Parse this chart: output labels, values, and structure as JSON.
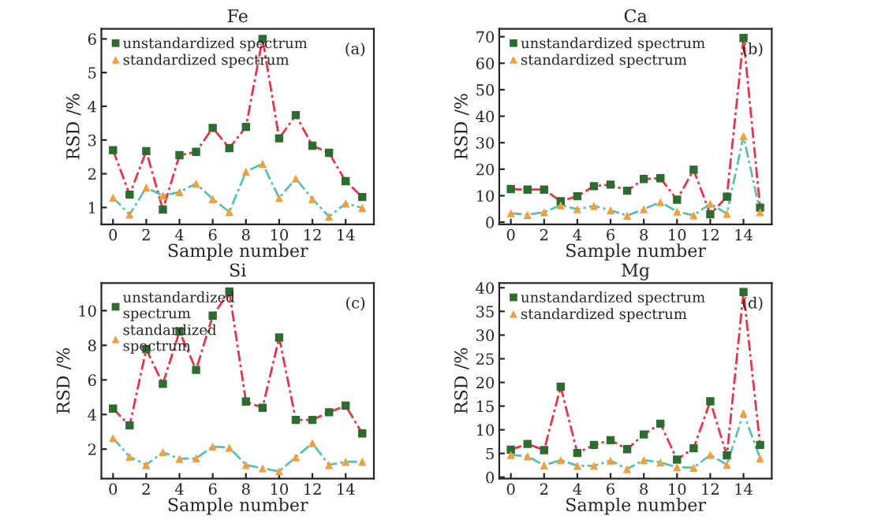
{
  "chart_data": [
    {
      "type": "line",
      "title": "Fe",
      "xlabel": "Sample number",
      "ylabel": "RSD /%",
      "annotations": [
        "(a)"
      ],
      "x": [
        0,
        1,
        2,
        3,
        4,
        5,
        6,
        7,
        8,
        9,
        10,
        11,
        12,
        13,
        14,
        15
      ],
      "xlim": [
        -0.7,
        15.7
      ],
      "xticks": [
        0,
        2,
        4,
        6,
        8,
        10,
        12,
        14
      ],
      "ylim": [
        0.5,
        6.3
      ],
      "yticks": [
        1,
        2,
        3,
        4,
        5,
        6
      ],
      "legend": "top left",
      "line_style": "dashed",
      "grid": false,
      "series": [
        {
          "name": "unstandardized spectrum",
          "color": "#2e6b2e",
          "marker": "square",
          "values": [
            2.7,
            1.38,
            2.67,
            0.94,
            2.55,
            2.65,
            3.36,
            2.76,
            3.39,
            6.0,
            3.05,
            3.74,
            2.83,
            2.62,
            1.78,
            1.31
          ]
        },
        {
          "name": "standardized spectrum",
          "color": "#f0a040",
          "marker": "triangle",
          "values": [
            1.29,
            0.79,
            1.59,
            1.35,
            1.46,
            1.71,
            1.25,
            0.87,
            2.06,
            2.3,
            1.28,
            1.86,
            1.25,
            0.73,
            1.12,
            0.99
          ]
        }
      ]
    },
    {
      "type": "line",
      "title": "Ca",
      "xlabel": "Sample number",
      "ylabel": "RSD /%",
      "annotations": [
        "(b)"
      ],
      "x": [
        0,
        1,
        2,
        3,
        4,
        5,
        6,
        7,
        8,
        9,
        10,
        11,
        12,
        13,
        14,
        15
      ],
      "xlim": [
        -0.7,
        15.7
      ],
      "xticks": [
        0,
        2,
        4,
        6,
        8,
        10,
        12,
        14
      ],
      "ylim": [
        -0.8,
        73
      ],
      "yticks": [
        0,
        10,
        20,
        30,
        40,
        50,
        60,
        70
      ],
      "legend": "top left",
      "line_style": "dashed",
      "grid": false,
      "series": [
        {
          "name": "unstandardized spectrum",
          "color": "#2e6b2e",
          "marker": "square",
          "values": [
            12.5,
            12.3,
            12.3,
            7.9,
            9.8,
            13.6,
            14.2,
            11.9,
            16.3,
            16.6,
            8.5,
            19.8,
            3.0,
            9.6,
            69.5,
            5.5
          ]
        },
        {
          "name": "standardized spectrum",
          "color": "#f0a040",
          "marker": "triangle",
          "values": [
            3.4,
            2.8,
            3.8,
            6.4,
            4.9,
            6.2,
            4.5,
            2.5,
            4.9,
            7.6,
            4.0,
            2.6,
            7.0,
            3.2,
            32.5,
            3.8
          ]
        }
      ]
    },
    {
      "type": "line",
      "title": "Si",
      "xlabel": "Sample number",
      "ylabel": "RSD /%",
      "annotations": [
        "(c)"
      ],
      "x": [
        0,
        1,
        2,
        3,
        4,
        5,
        6,
        7,
        8,
        9,
        10,
        11,
        12,
        13,
        14,
        15
      ],
      "xlim": [
        -0.7,
        15.7
      ],
      "xticks": [
        0,
        2,
        4,
        6,
        8,
        10,
        12,
        14
      ],
      "ylim": [
        0.3,
        11.6
      ],
      "yticks": [
        2,
        4,
        6,
        8,
        10
      ],
      "legend": "top left",
      "line_style": "dashed",
      "grid": false,
      "series": [
        {
          "name": "unstandardized\nspectrum",
          "color": "#2e6b2e",
          "marker": "square",
          "values": [
            4.34,
            3.37,
            7.78,
            5.77,
            8.8,
            6.58,
            9.71,
            11.1,
            4.75,
            4.39,
            8.45,
            3.69,
            3.69,
            4.13,
            4.51,
            2.91
          ]
        },
        {
          "name": "standardized\nspectrum",
          "color": "#f0a040",
          "marker": "triangle",
          "values": [
            2.64,
            1.56,
            1.09,
            1.82,
            1.44,
            1.47,
            2.15,
            2.09,
            1.09,
            0.89,
            0.72,
            1.53,
            2.35,
            1.09,
            1.27,
            1.27
          ]
        }
      ]
    },
    {
      "type": "line",
      "title": "Mg",
      "xlabel": "Sample number",
      "ylabel": "RSD /%",
      "annotations": [
        "(d)"
      ],
      "x": [
        0,
        1,
        2,
        3,
        4,
        5,
        6,
        7,
        8,
        9,
        10,
        11,
        12,
        13,
        14,
        15
      ],
      "xlim": [
        -0.7,
        15.7
      ],
      "xticks": [
        0,
        2,
        4,
        6,
        8,
        10,
        12,
        14
      ],
      "ylim": [
        -0.3,
        41
      ],
      "yticks": [
        0,
        5,
        10,
        15,
        20,
        25,
        30,
        35,
        40
      ],
      "legend": "top left",
      "line_style": "dashed",
      "grid": false,
      "series": [
        {
          "name": "unstandardized spectrum",
          "color": "#2e6b2e",
          "marker": "square",
          "values": [
            5.8,
            7.0,
            5.7,
            19.1,
            5.1,
            6.8,
            7.8,
            5.9,
            9.0,
            11.3,
            3.7,
            6.1,
            16.0,
            4.6,
            39.1,
            6.8
          ]
        },
        {
          "name": "standardized spectrum",
          "color": "#f0a040",
          "marker": "triangle",
          "values": [
            4.7,
            4.4,
            2.5,
            3.6,
            2.4,
            2.4,
            3.5,
            1.7,
            3.6,
            3.1,
            2.1,
            2.0,
            4.7,
            2.6,
            13.5,
            4.0
          ]
        }
      ]
    }
  ]
}
